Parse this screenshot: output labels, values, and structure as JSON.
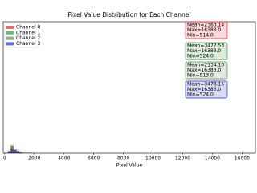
{
  "chart_data": {
    "type": "histogram",
    "title": "Pixel Value Distribution for Each Channel",
    "x_label": "Pixel Value",
    "bins": [
      0,
      200,
      400,
      600,
      800,
      1000,
      1200,
      1400,
      1600,
      1800,
      2000
    ],
    "series": [
      {
        "name": "Channel 0",
        "color": "#e8282d",
        "values": [
          0,
          1,
          6,
          3,
          1,
          0.5,
          0.3,
          0.2,
          0.1,
          0.1
        ],
        "stats": [
          "Mean=2363.14",
          "Max=16383.0",
          "Min=514.0"
        ]
      },
      {
        "name": "Channel 1",
        "color": "#3c9a3c",
        "values": [
          0,
          1,
          4,
          2,
          1,
          0.5,
          0.3,
          0.2,
          0.1,
          0.1
        ],
        "stats": [
          "Mean=3477.53",
          "Max=16383.0",
          "Min=524.0"
        ]
      },
      {
        "name": "Channel 2",
        "color": "#5a8c5a",
        "values": [
          0,
          1,
          5,
          2.5,
          1,
          0.5,
          0.3,
          0.2,
          0.1,
          0.1
        ],
        "stats": [
          "Mean=2134.10",
          "Max=16383.0",
          "Min=513.0"
        ]
      },
      {
        "name": "Channel 3",
        "color": "#2a2ad8",
        "values": [
          0,
          0.5,
          3,
          2,
          1,
          0.5,
          0.3,
          0.2,
          0.1,
          0.1
        ],
        "stats": [
          "Mean=3478.15",
          "Max=16383.0",
          "Min=524.0"
        ]
      }
    ],
    "xlim": [
      -100,
      16900
    ],
    "ylim": [
      0,
      100
    ],
    "xticks": [
      0,
      2000,
      4000,
      6000,
      8000,
      10000,
      12000,
      14000,
      16000
    ],
    "legend": "upper left"
  }
}
